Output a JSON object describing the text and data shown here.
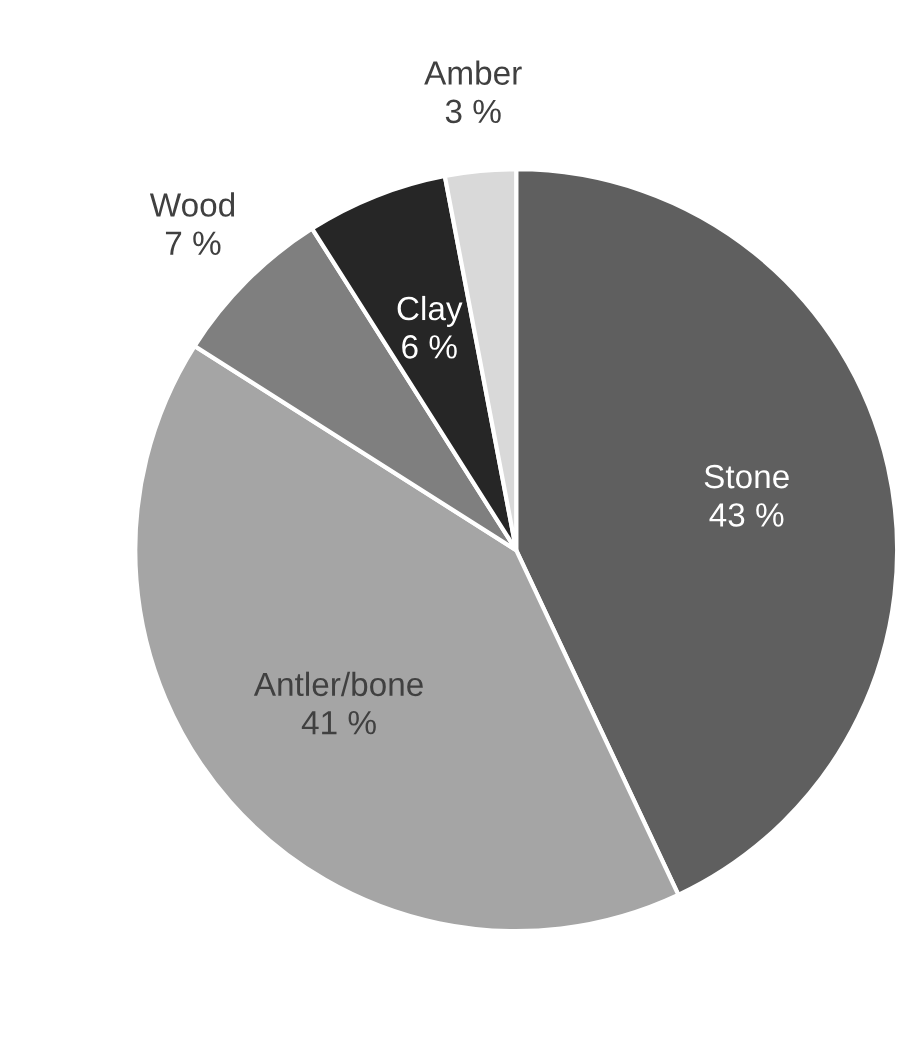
{
  "chart_data": {
    "type": "pie",
    "categories": [
      "Stone",
      "Antler/bone",
      "Wood",
      "Clay",
      "Amber"
    ],
    "values": [
      43,
      41,
      7,
      6,
      3
    ],
    "value_labels": [
      "43 %",
      "41 %",
      "7 %",
      "6 %",
      "3 %"
    ],
    "colors": [
      "#5f5f5f",
      "#a5a5a5",
      "#7f7f7f",
      "#262626",
      "#d9d9d9"
    ],
    "legend": false
  }
}
